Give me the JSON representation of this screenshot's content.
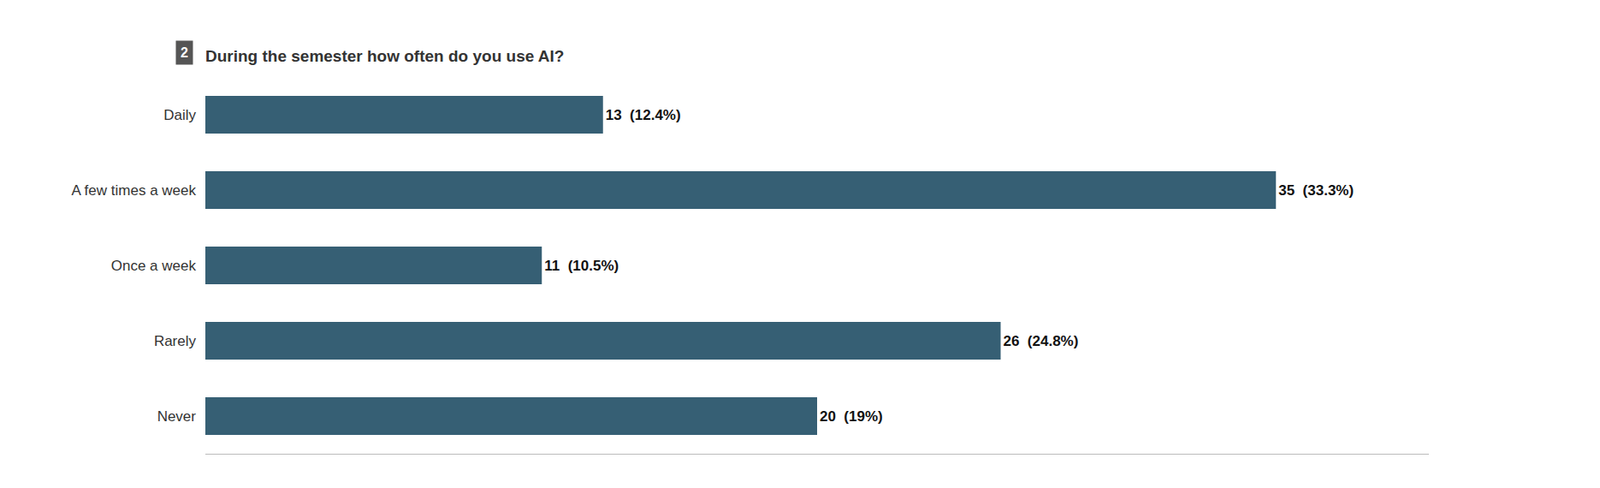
{
  "chart_data": {
    "type": "bar",
    "orientation": "horizontal",
    "title": "During the semester how often do you use AI?",
    "annotations": [
      "2"
    ],
    "categories": [
      "Daily",
      "A few times a week",
      "Once a week",
      "Rarely",
      "Never"
    ],
    "values": [
      13,
      35,
      11,
      26,
      20
    ],
    "value_labels": [
      "13  (12.4%)",
      "35  (33.3%)",
      "11  (10.5%)",
      "26  (24.8%)",
      "20  (19%)"
    ],
    "data_labels": true,
    "color": "#365f74",
    "xlim": [
      0,
      40
    ],
    "grid": false,
    "tick_labels": "y"
  }
}
